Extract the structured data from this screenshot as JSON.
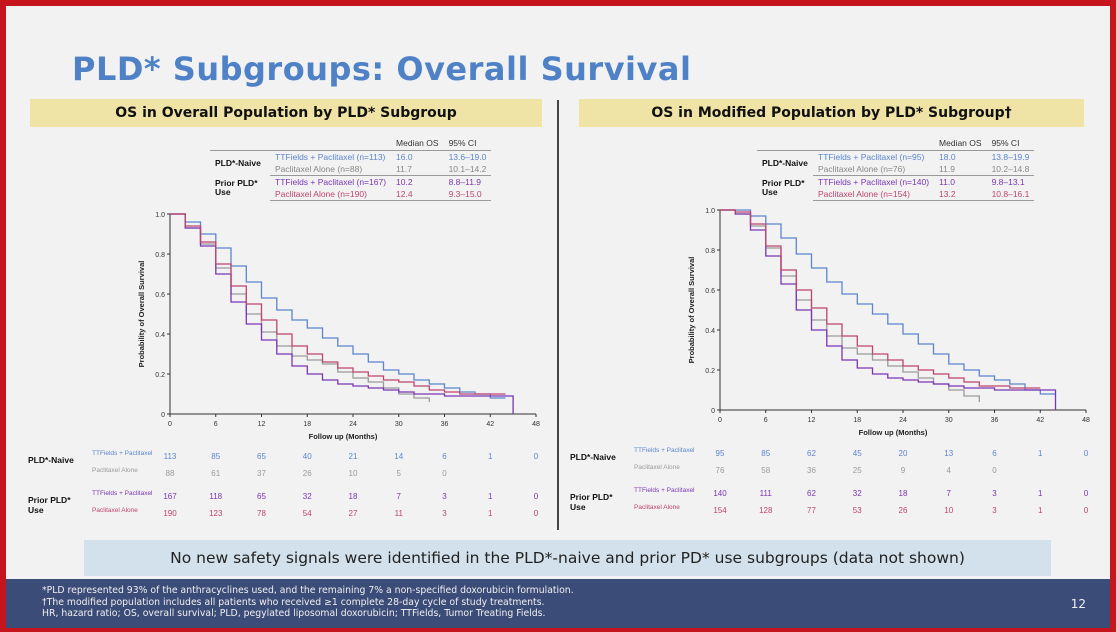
{
  "title": "PLD* Subgroups: Overall Survival",
  "page_number": "12",
  "note": "No new safety signals were identified in the PLD*-naive and prior PD* use subgroups  (data not shown)",
  "footnotes": [
    "*PLD represented 93% of the anthracyclines used, and the remaining 7% a non-specified doxorubicin formulation.",
    "†The modified population includes all patients who received ≥1 complete 28-day cycle of study treatments.",
    "HR, hazard ratio; OS, overall survival; PLD, pegylated liposomal doxorubicin; TTFields, Tumor Treating Fields."
  ],
  "colors": {
    "blue": "#5b86cf",
    "gray": "#9a9a9a",
    "purple": "#7a35b5",
    "pink": "#c0446e"
  },
  "panels": [
    {
      "header": "OS in Overall Population by PLD* Subgroup",
      "legend": {
        "col_median": "Median OS",
        "col_ci": "95% CI",
        "groups": [
          {
            "name": "PLD*-Naive",
            "rows": [
              {
                "label": "TTFields + Paclitaxel (n=113)",
                "median": "16.0",
                "ci": "13.6–19.0",
                "color": "blue"
              },
              {
                "label": "Paclitaxel Alone (n=88)",
                "median": "11.7",
                "ci": "10.1–14.2",
                "color": "gray"
              }
            ]
          },
          {
            "name": "Prior PLD* Use",
            "rows": [
              {
                "label": "TTFields + Paclitaxel (n=167)",
                "median": "10.2",
                "ci": "8.8–11.9",
                "color": "purple"
              },
              {
                "label": "Paclitaxel Alone (n=190)",
                "median": "12.4",
                "ci": "9.3–15.0",
                "color": "pink"
              }
            ]
          }
        ]
      },
      "ylabel": "Probability of Overall Survival",
      "xlabel": "Follow up (Months)",
      "risk_table": {
        "groups": [
          {
            "name": "PLD*-Naive",
            "rows": [
              {
                "label": "TTFields + Paclitaxel",
                "color": "blue",
                "values": [
                  "113",
                  "85",
                  "65",
                  "40",
                  "21",
                  "14",
                  "6",
                  "1",
                  "0"
                ]
              },
              {
                "label": "Paclitaxel Alone",
                "color": "gray",
                "values": [
                  "88",
                  "61",
                  "37",
                  "26",
                  "10",
                  "5",
                  "0",
                  "",
                  ""
                ]
              }
            ]
          },
          {
            "name": "Prior PLD* Use",
            "rows": [
              {
                "label": "TTFields + Paclitaxel",
                "color": "purple",
                "values": [
                  "167",
                  "118",
                  "65",
                  "32",
                  "18",
                  "7",
                  "3",
                  "1",
                  "0"
                ]
              },
              {
                "label": "Paclitaxel Alone",
                "color": "pink",
                "values": [
                  "190",
                  "123",
                  "78",
                  "54",
                  "27",
                  "11",
                  "3",
                  "1",
                  "0"
                ]
              }
            ]
          }
        ]
      }
    },
    {
      "header": "OS in Modified Population by PLD* Subgroup†",
      "legend": {
        "col_median": "Median OS",
        "col_ci": "95% CI",
        "groups": [
          {
            "name": "PLD*-Naive",
            "rows": [
              {
                "label": "TTFields + Paclitaxel (n=95)",
                "median": "18.0",
                "ci": "13.8–19.9",
                "color": "blue"
              },
              {
                "label": "Paclitaxel Alone (n=76)",
                "median": "11.9",
                "ci": "10.2–14.8",
                "color": "gray"
              }
            ]
          },
          {
            "name": "Prior PLD* Use",
            "rows": [
              {
                "label": "TTFields + Paclitaxel (n=140)",
                "median": "11.0",
                "ci": "9.8–13.1",
                "color": "purple"
              },
              {
                "label": "Paclitaxel Alone (n=154)",
                "median": "13.2",
                "ci": "10.8–16.1",
                "color": "pink"
              }
            ]
          }
        ]
      },
      "ylabel": "Probability of Overall Survival",
      "xlabel": "Follow up (Months)",
      "risk_table": {
        "groups": [
          {
            "name": "PLD*-Naive",
            "rows": [
              {
                "label": "TTFields + Paclitaxel",
                "color": "blue",
                "values": [
                  "95",
                  "85",
                  "62",
                  "45",
                  "20",
                  "13",
                  "6",
                  "1",
                  "0"
                ]
              },
              {
                "label": "Paclitaxel Alone",
                "color": "gray",
                "values": [
                  "76",
                  "58",
                  "36",
                  "25",
                  "9",
                  "4",
                  "0",
                  "",
                  ""
                ]
              }
            ]
          },
          {
            "name": "Prior PLD* Use",
            "rows": [
              {
                "label": "TTFields + Paclitaxel",
                "color": "purple",
                "values": [
                  "140",
                  "111",
                  "62",
                  "32",
                  "18",
                  "7",
                  "3",
                  "1",
                  "0"
                ]
              },
              {
                "label": "Paclitaxel Alone",
                "color": "pink",
                "values": [
                  "154",
                  "128",
                  "77",
                  "53",
                  "26",
                  "10",
                  "3",
                  "1",
                  "0"
                ]
              }
            ]
          }
        ]
      }
    }
  ],
  "chart_data": [
    {
      "type": "line",
      "title": "OS in Overall Population by PLD* Subgroup",
      "xlabel": "Follow up (Months)",
      "ylabel": "Probability of Overall Survival",
      "xlim": [
        0,
        48
      ],
      "ylim": [
        0,
        1.0
      ],
      "xticks": [
        0,
        6,
        12,
        18,
        24,
        30,
        36,
        42,
        48
      ],
      "yticks": [
        "0",
        "0.2",
        "0.4",
        "0.6",
        "0.8",
        "1.0"
      ],
      "series": [
        {
          "name": "TTFields + Paclitaxel (n=113)",
          "color": "blue",
          "x": [
            0,
            2,
            4,
            6,
            8,
            10,
            12,
            14,
            16,
            18,
            20,
            22,
            24,
            26,
            28,
            30,
            32,
            34,
            36,
            38,
            40,
            42,
            44
          ],
          "y": [
            1.0,
            0.96,
            0.9,
            0.83,
            0.74,
            0.66,
            0.58,
            0.52,
            0.47,
            0.43,
            0.38,
            0.34,
            0.3,
            0.26,
            0.22,
            0.2,
            0.17,
            0.15,
            0.13,
            0.11,
            0.1,
            0.08,
            0.08
          ]
        },
        {
          "name": "Paclitaxel Alone (n=88)",
          "color": "gray",
          "x": [
            0,
            2,
            4,
            6,
            8,
            10,
            12,
            14,
            16,
            18,
            20,
            22,
            24,
            26,
            28,
            30,
            32,
            34
          ],
          "y": [
            1.0,
            0.93,
            0.85,
            0.73,
            0.6,
            0.5,
            0.41,
            0.34,
            0.29,
            0.27,
            0.25,
            0.21,
            0.18,
            0.16,
            0.13,
            0.1,
            0.08,
            0.06
          ]
        },
        {
          "name": "TTFields + Paclitaxel (n=167)",
          "color": "purple",
          "x": [
            0,
            2,
            4,
            6,
            8,
            10,
            12,
            14,
            16,
            18,
            20,
            22,
            24,
            26,
            28,
            30,
            32,
            34,
            36,
            38,
            40,
            42,
            44,
            45
          ],
          "y": [
            1.0,
            0.93,
            0.84,
            0.7,
            0.56,
            0.45,
            0.37,
            0.3,
            0.24,
            0.2,
            0.17,
            0.15,
            0.14,
            0.13,
            0.12,
            0.11,
            0.1,
            0.1,
            0.09,
            0.09,
            0.09,
            0.09,
            0.09,
            0.0
          ]
        },
        {
          "name": "Paclitaxel Alone (n=190)",
          "color": "pink",
          "x": [
            0,
            2,
            4,
            6,
            8,
            10,
            12,
            14,
            16,
            18,
            20,
            22,
            24,
            26,
            28,
            30,
            32,
            34,
            36,
            38,
            40,
            42,
            44
          ],
          "y": [
            1.0,
            0.94,
            0.86,
            0.75,
            0.64,
            0.55,
            0.47,
            0.4,
            0.34,
            0.3,
            0.26,
            0.23,
            0.21,
            0.19,
            0.17,
            0.16,
            0.14,
            0.12,
            0.11,
            0.1,
            0.1,
            0.1,
            0.1
          ]
        }
      ]
    },
    {
      "type": "line",
      "title": "OS in Modified Population by PLD* Subgroup†",
      "xlabel": "Follow up (Months)",
      "ylabel": "Probability of Overall Survival",
      "xlim": [
        0,
        48
      ],
      "ylim": [
        0,
        1.0
      ],
      "xticks": [
        0,
        6,
        12,
        18,
        24,
        30,
        36,
        42,
        48
      ],
      "yticks": [
        "0",
        "0.2",
        "0.4",
        "0.6",
        "0.8",
        "1.0"
      ],
      "series": [
        {
          "name": "TTFields + Paclitaxel (n=95)",
          "color": "blue",
          "x": [
            0,
            2,
            4,
            6,
            8,
            10,
            12,
            14,
            16,
            18,
            20,
            22,
            24,
            26,
            28,
            30,
            32,
            34,
            36,
            38,
            40,
            42,
            44
          ],
          "y": [
            1.0,
            1.0,
            0.97,
            0.93,
            0.86,
            0.78,
            0.71,
            0.64,
            0.58,
            0.53,
            0.48,
            0.43,
            0.38,
            0.33,
            0.28,
            0.23,
            0.2,
            0.17,
            0.15,
            0.13,
            0.1,
            0.08,
            0.08
          ]
        },
        {
          "name": "Paclitaxel Alone (n=76)",
          "color": "gray",
          "x": [
            0,
            2,
            4,
            6,
            8,
            10,
            12,
            14,
            16,
            18,
            20,
            22,
            24,
            26,
            28,
            30,
            32,
            34
          ],
          "y": [
            1.0,
            0.98,
            0.92,
            0.81,
            0.67,
            0.55,
            0.45,
            0.37,
            0.31,
            0.28,
            0.25,
            0.22,
            0.19,
            0.16,
            0.13,
            0.1,
            0.07,
            0.04
          ]
        },
        {
          "name": "TTFields + Paclitaxel (n=140)",
          "color": "purple",
          "x": [
            0,
            2,
            4,
            6,
            8,
            10,
            12,
            14,
            16,
            18,
            20,
            22,
            24,
            26,
            28,
            30,
            32,
            34,
            36,
            38,
            40,
            42,
            44
          ],
          "y": [
            1.0,
            0.98,
            0.9,
            0.77,
            0.63,
            0.5,
            0.4,
            0.32,
            0.25,
            0.21,
            0.18,
            0.16,
            0.15,
            0.14,
            0.13,
            0.12,
            0.11,
            0.11,
            0.1,
            0.1,
            0.1,
            0.1,
            0.0
          ]
        },
        {
          "name": "Paclitaxel Alone (n=154)",
          "color": "pink",
          "x": [
            0,
            2,
            4,
            6,
            8,
            10,
            12,
            14,
            16,
            18,
            20,
            22,
            24,
            26,
            28,
            30,
            32,
            34,
            36,
            38,
            40,
            42
          ],
          "y": [
            1.0,
            0.99,
            0.93,
            0.82,
            0.7,
            0.6,
            0.51,
            0.43,
            0.37,
            0.32,
            0.28,
            0.25,
            0.22,
            0.2,
            0.18,
            0.16,
            0.14,
            0.12,
            0.12,
            0.11,
            0.11,
            0.11
          ]
        }
      ]
    }
  ]
}
